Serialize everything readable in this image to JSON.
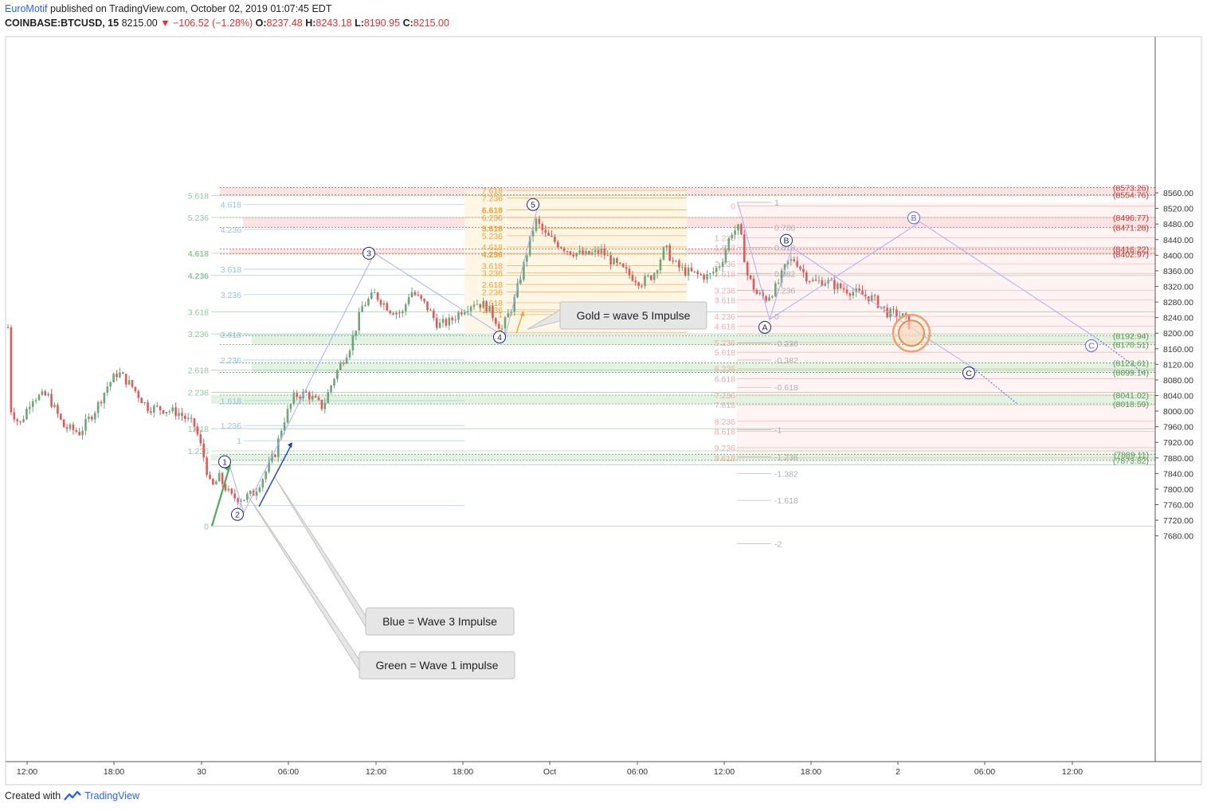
{
  "header": {
    "author": "EuroMotif",
    "published_text": "published on TradingView.com, October 02, 2019 01:07:45 EDT",
    "symbol": "COINBASE:BTCUSD, 15",
    "last": "8215.00",
    "change": "−106.52 (−1.28%)",
    "o_label": "O:",
    "o": "8237.48",
    "h_label": "H:",
    "h": "8243.18",
    "l_label": "L:",
    "l": "8190.95",
    "c_label": "C:",
    "c": "8215.00"
  },
  "footer": {
    "created_with": "Created with",
    "brand": "TradingView"
  },
  "colors": {
    "up": "#6fa57a",
    "down": "#e05a5a",
    "wave_line": "#aab0f0",
    "wave_circle": "#1a237e",
    "green_fib": "#8fc79a",
    "blue_fib": "#90c3e8",
    "gold_fib": "#f0a030",
    "red_fib": "#f2a9a9",
    "gray_fib": "#b0b0b0",
    "red_zone": "#fde3e3",
    "green_zone": "#e3f2e3"
  },
  "callouts": [
    {
      "text": "Gold = wave 5 Impulse"
    },
    {
      "text": "Blue = Wave 3 Impulse"
    },
    {
      "text": "Green = Wave 1 impulse"
    }
  ],
  "chart_data": {
    "type": "candlestick",
    "title": "COINBASE:BTCUSD, 15",
    "ylim": [
      7640,
      8590
    ],
    "y_ticks": [
      "8560.00",
      "8520.00",
      "8480.00",
      "8440.00",
      "8400.00",
      "8360.00",
      "8320.00",
      "8280.00",
      "8240.00",
      "8200.00",
      "8160.00",
      "8120.00",
      "8080.00",
      "8040.00",
      "8000.00",
      "7960.00",
      "7920.00",
      "7880.00",
      "7840.00",
      "7800.00",
      "7760.00",
      "7720.00",
      "7680.00"
    ],
    "y_tick_values": [
      8560,
      8520,
      8480,
      8440,
      8400,
      8360,
      8320,
      8280,
      8240,
      8200,
      8160,
      8120,
      8080,
      8040,
      8000,
      7960,
      7920,
      7880,
      7840,
      7800,
      7760,
      7720,
      7680
    ],
    "x_ticks": [
      "12:00",
      "18:00",
      "30",
      "06:00",
      "12:00",
      "18:00",
      "Oct",
      "06:00",
      "12:00",
      "18:00",
      "2",
      "06:00",
      "12:00"
    ],
    "current_price": 8215.0,
    "price_levels": [
      {
        "label": "(8573.26)",
        "value": 8573.26,
        "color": "red"
      },
      {
        "label": "(8554.76)",
        "value": 8554.76,
        "color": "red"
      },
      {
        "label": "(8496.77)",
        "value": 8496.77,
        "color": "red"
      },
      {
        "label": "(8471.28)",
        "value": 8471.28,
        "color": "red"
      },
      {
        "label": "(8416.22)",
        "value": 8416.22,
        "color": "red"
      },
      {
        "label": "(8402.97)",
        "value": 8402.97,
        "color": "red"
      },
      {
        "label": "(8192.94)",
        "value": 8192.94,
        "color": "green"
      },
      {
        "label": "(8170.51)",
        "value": 8170.51,
        "color": "green"
      },
      {
        "label": "(8123.61)",
        "value": 8123.61,
        "color": "green"
      },
      {
        "label": "(8099.14)",
        "value": 8099.14,
        "color": "green"
      },
      {
        "label": "(8041.02)",
        "value": 8041.02,
        "color": "green"
      },
      {
        "label": "(8018.59)",
        "value": 8018.59,
        "color": "green"
      },
      {
        "label": "(7889.11)",
        "value": 7889.11,
        "color": "green"
      },
      {
        "label": "(7873.82)",
        "value": 7873.82,
        "color": "green"
      }
    ],
    "wave_labels": [
      {
        "label": "1",
        "t": 282,
        "price": 7870
      },
      {
        "label": "2",
        "t": 298,
        "price": 7735
      },
      {
        "label": "3",
        "t": 463,
        "price": 8405
      },
      {
        "label": "4",
        "t": 627,
        "price": 8190
      },
      {
        "label": "5",
        "t": 669,
        "price": 8530
      },
      {
        "label": "A",
        "t": 960,
        "price": 8215
      },
      {
        "label": "B",
        "t": 987,
        "price": 8438
      },
      {
        "label": "B",
        "t": 1147,
        "price": 8496
      },
      {
        "label": "C",
        "t": 1216,
        "price": 8098
      },
      {
        "label": "C",
        "t": 1370,
        "price": 8168
      }
    ],
    "fib_green": [
      {
        "label": "5.618",
        "price": 8553
      },
      {
        "label": "5.236",
        "price": 8497
      },
      {
        "label": "4.618",
        "price": 8405
      },
      {
        "label": "4.236",
        "price": 8348
      },
      {
        "label": "3.618",
        "price": 8255
      },
      {
        "label": "3.236",
        "price": 8198
      },
      {
        "label": "2.618",
        "price": 8105
      },
      {
        "label": "2.236",
        "price": 8048
      },
      {
        "label": "1.618",
        "price": 7955
      },
      {
        "label": "1.236",
        "price": 7898
      },
      {
        "label": "1",
        "price": 7862
      },
      {
        "label": "0",
        "price": 7705
      }
    ],
    "fib_blue": [
      {
        "label": "4.618",
        "price": 8530
      },
      {
        "label": "4.236",
        "price": 8466
      },
      {
        "label": "3.618",
        "price": 8364
      },
      {
        "label": "3.236",
        "price": 8299
      },
      {
        "label": "2.618",
        "price": 8196
      },
      {
        "label": "2.236",
        "price": 8131
      },
      {
        "label": "1.618",
        "price": 8027
      },
      {
        "label": "1.236",
        "price": 7963
      },
      {
        "label": "1",
        "price": 7924
      },
      {
        "label": "0",
        "price": 7758
      }
    ],
    "fib_gold": [
      {
        "label": "7.618",
        "price": 8566
      },
      {
        "label": "7.236",
        "price": 8547
      },
      {
        "label": "6.618",
        "price": 8516
      },
      {
        "label": "6.236",
        "price": 8497
      },
      {
        "label": "5.618",
        "price": 8469
      },
      {
        "label": "5.236",
        "price": 8450
      },
      {
        "label": "4.618",
        "price": 8421
      },
      {
        "label": "4.236",
        "price": 8403
      },
      {
        "label": "3.618",
        "price": 8373
      },
      {
        "label": "3.236",
        "price": 8355
      },
      {
        "label": "2.618",
        "price": 8325
      },
      {
        "label": "2.236",
        "price": 8306
      },
      {
        "label": "1.618",
        "price": 8278
      },
      {
        "label": "1.236",
        "price": 8260
      },
      {
        "label": "1",
        "price": 8248
      },
      {
        "label": "0",
        "price": 8202
      }
    ],
    "fib_red": [
      {
        "label": "0",
        "price": 8526
      },
      {
        "label": "1.236",
        "price": 8445
      },
      {
        "label": "1.618",
        "price": 8420
      },
      {
        "label": "2.236",
        "price": 8378
      },
      {
        "label": "2.618",
        "price": 8353
      },
      {
        "label": "3.236",
        "price": 8310
      },
      {
        "label": "3.618",
        "price": 8285
      },
      {
        "label": "4.236",
        "price": 8243
      },
      {
        "label": "4.618",
        "price": 8218
      },
      {
        "label": "5.236",
        "price": 8176
      },
      {
        "label": "5.618",
        "price": 8151
      },
      {
        "label": "6.236",
        "price": 8109
      },
      {
        "label": "6.618",
        "price": 8083
      },
      {
        "label": "7.236",
        "price": 8041
      },
      {
        "label": "7.618",
        "price": 8016
      },
      {
        "label": "8.236",
        "price": 7974
      },
      {
        "label": "8.618",
        "price": 7948
      },
      {
        "label": "9.236",
        "price": 7906
      },
      {
        "label": "9.618",
        "price": 7880
      }
    ],
    "fib_gray": [
      {
        "label": "1",
        "price": 8536
      },
      {
        "label": "0.786",
        "price": 8471
      },
      {
        "label": "0.618",
        "price": 8420
      },
      {
        "label": "0.382",
        "price": 8353
      },
      {
        "label": "0.236",
        "price": 8310
      },
      {
        "label": "0",
        "price": 8243
      },
      {
        "label": "-0.236",
        "price": 8174
      },
      {
        "label": "-0.382",
        "price": 8131
      },
      {
        "label": "-0.618",
        "price": 8061
      },
      {
        "label": "-1",
        "price": 7952
      },
      {
        "label": "-1.236",
        "price": 7883
      },
      {
        "label": "-1.382",
        "price": 7840
      },
      {
        "label": "-1.618",
        "price": 7771
      },
      {
        "label": "-2",
        "price": 7660
      }
    ]
  }
}
